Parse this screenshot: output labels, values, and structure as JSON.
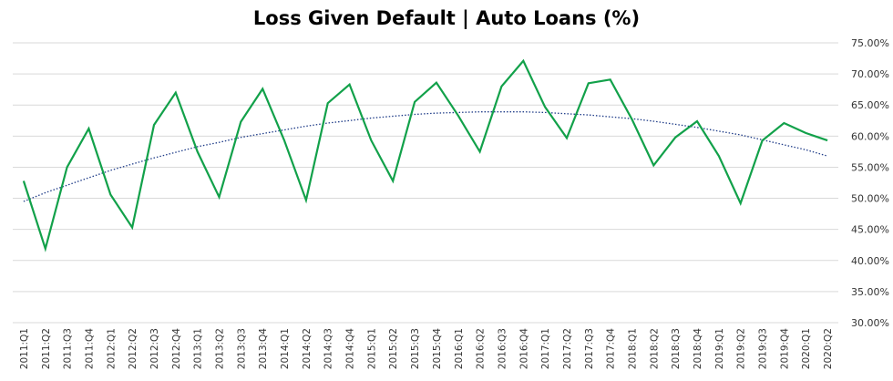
{
  "chart_data": {
    "type": "line",
    "title": "Loss Given Default | Auto Loans (%)",
    "xlabel": "",
    "ylabel": "",
    "ylim": [
      30,
      75
    ],
    "yticks": [
      30,
      35,
      40,
      45,
      50,
      55,
      60,
      65,
      70,
      75
    ],
    "ytick_labels": [
      "30.00%",
      "35.00%",
      "40.00%",
      "45.00%",
      "50.00%",
      "55.00%",
      "60.00%",
      "65.00%",
      "70.00%",
      "75.00%"
    ],
    "y_axis_side": "right",
    "grid": true,
    "legend": "none",
    "categories": [
      "2011:Q1",
      "2011:Q2",
      "2011:Q3",
      "2011:Q4",
      "2012:Q1",
      "2012:Q2",
      "2012:Q3",
      "2012:Q4",
      "2013:Q1",
      "2013:Q2",
      "2013:Q3",
      "2013:Q4",
      "2014:Q1",
      "2014:Q2",
      "2014:Q3",
      "2014:Q4",
      "2015:Q1",
      "2015:Q2",
      "2015:Q3",
      "2015:Q4",
      "2016:Q1",
      "2016:Q2",
      "2016:Q3",
      "2016:Q4",
      "2017:Q1",
      "2017:Q2",
      "2017:Q3",
      "2017:Q4",
      "2018:Q1",
      "2018:Q2",
      "2018:Q3",
      "2018:Q4",
      "2019:Q1",
      "2019:Q2",
      "2019:Q3",
      "2019:Q4",
      "2020:Q1",
      "2020:Q2"
    ],
    "series": [
      {
        "color": "#12a14a",
        "values": [
          52.8,
          41.9,
          55.0,
          61.2,
          50.6,
          45.3,
          61.8,
          67.0,
          57.5,
          50.2,
          62.3,
          67.6,
          59.3,
          49.7,
          65.3,
          68.3,
          59.3,
          52.8,
          65.5,
          68.6,
          63.3,
          57.5,
          68.0,
          72.1,
          64.7,
          59.7,
          68.5,
          69.1,
          62.7,
          55.3,
          59.8,
          62.4,
          56.8,
          49.2,
          59.3,
          62.1,
          60.5,
          59.3
        ]
      },
      {
        "color": "#1f3c88",
        "style": "dotted",
        "values": [
          49.5,
          50.9,
          52.1,
          53.3,
          54.5,
          55.5,
          56.5,
          57.4,
          58.3,
          59.0,
          59.8,
          60.4,
          61.0,
          61.6,
          62.1,
          62.5,
          62.9,
          63.2,
          63.5,
          63.7,
          63.8,
          63.9,
          63.9,
          63.9,
          63.8,
          63.6,
          63.4,
          63.1,
          62.8,
          62.4,
          61.9,
          61.4,
          60.8,
          60.2,
          59.4,
          58.6,
          57.8,
          56.8
        ]
      }
    ]
  }
}
